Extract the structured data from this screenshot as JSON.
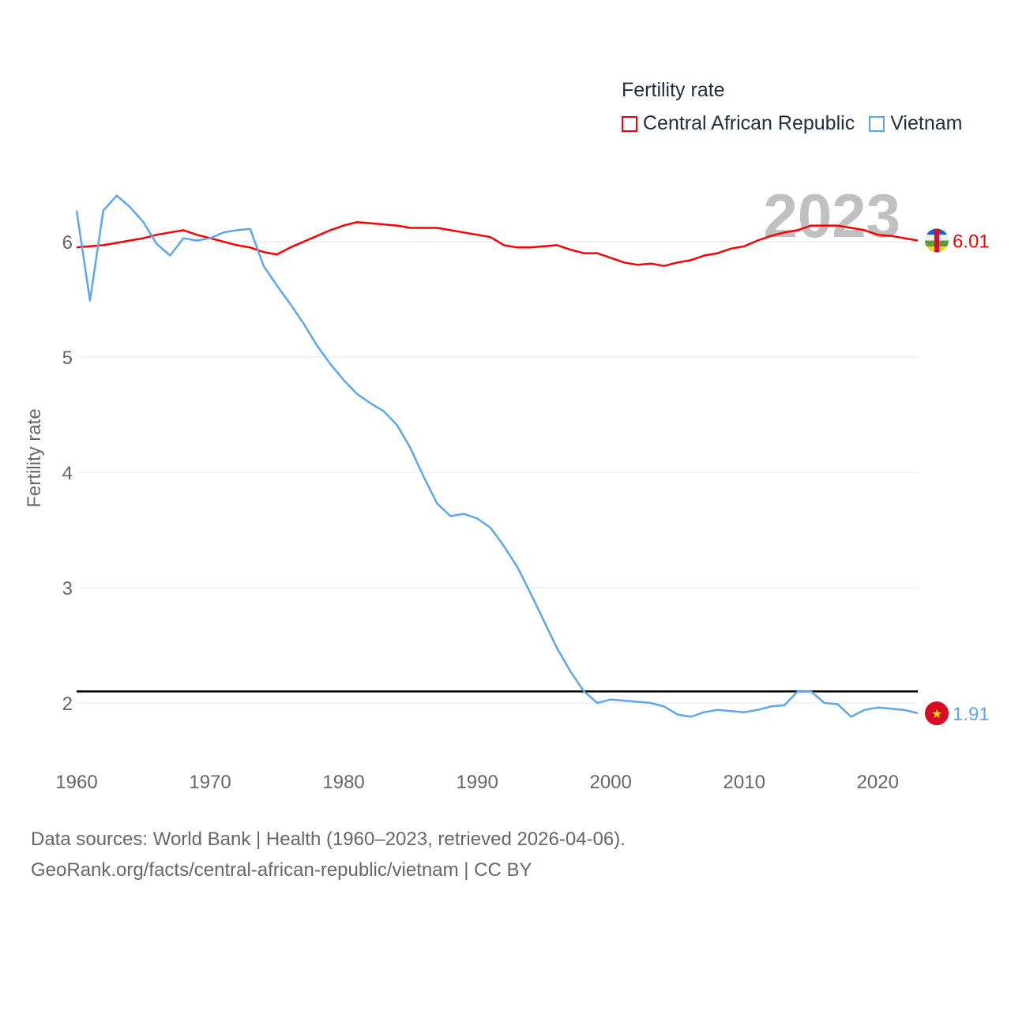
{
  "chart_data": {
    "type": "line",
    "title": "Fertility rate",
    "ylabel": "Fertility rate",
    "xlabel": "",
    "xlim": [
      1960,
      2023
    ],
    "ylim": [
      1.5,
      6.5
    ],
    "xticks": [
      1960,
      1970,
      1980,
      1990,
      2000,
      2010,
      2020
    ],
    "yticks": [
      2,
      3,
      4,
      5,
      6
    ],
    "grid": true,
    "legend_placement": "top-right",
    "year_watermark": "2023",
    "reference_line": {
      "y": 2.1,
      "color": "#000000"
    },
    "x": [
      1960,
      1961,
      1962,
      1963,
      1964,
      1965,
      1966,
      1967,
      1968,
      1969,
      1970,
      1971,
      1972,
      1973,
      1974,
      1975,
      1976,
      1977,
      1978,
      1979,
      1980,
      1981,
      1982,
      1983,
      1984,
      1985,
      1986,
      1987,
      1988,
      1989,
      1990,
      1991,
      1992,
      1993,
      1994,
      1995,
      1996,
      1997,
      1998,
      1999,
      2000,
      2001,
      2002,
      2003,
      2004,
      2005,
      2006,
      2007,
      2008,
      2009,
      2010,
      2011,
      2012,
      2013,
      2014,
      2015,
      2016,
      2017,
      2018,
      2019,
      2020,
      2021,
      2022,
      2023
    ],
    "series": [
      {
        "name": "Central African Republic",
        "color": "#ff0000",
        "end_label": "6.01",
        "values": [
          5.95,
          5.96,
          5.97,
          5.99,
          6.01,
          6.03,
          6.06,
          6.08,
          6.1,
          6.06,
          6.03,
          6.0,
          5.97,
          5.95,
          5.91,
          5.89,
          5.95,
          6.0,
          6.05,
          6.1,
          6.14,
          6.17,
          6.16,
          6.15,
          6.14,
          6.12,
          6.12,
          6.12,
          6.1,
          6.08,
          6.06,
          6.04,
          5.97,
          5.95,
          5.95,
          5.96,
          5.97,
          5.93,
          5.9,
          5.9,
          5.86,
          5.82,
          5.8,
          5.81,
          5.79,
          5.82,
          5.84,
          5.88,
          5.9,
          5.94,
          5.96,
          6.01,
          6.05,
          6.08,
          6.1,
          6.14,
          6.14,
          6.14,
          6.12,
          6.1,
          6.06,
          6.05,
          6.03,
          6.01
        ]
      },
      {
        "name": "Vietnam",
        "color": "#5ba7ee",
        "end_label": "1.91",
        "values": [
          6.27,
          5.49,
          6.27,
          6.4,
          6.3,
          6.17,
          5.98,
          5.88,
          6.03,
          6.01,
          6.03,
          6.08,
          6.1,
          6.11,
          5.79,
          5.62,
          5.46,
          5.29,
          5.1,
          4.94,
          4.8,
          4.68,
          4.6,
          4.53,
          4.41,
          4.21,
          3.96,
          3.73,
          3.62,
          3.64,
          3.6,
          3.52,
          3.36,
          3.18,
          2.95,
          2.71,
          2.47,
          2.27,
          2.1,
          2.0,
          2.03,
          2.02,
          2.01,
          2.0,
          1.97,
          1.9,
          1.88,
          1.92,
          1.94,
          1.93,
          1.92,
          1.94,
          1.97,
          1.98,
          2.1,
          2.1,
          2.0,
          1.99,
          1.88,
          1.94,
          1.96,
          1.95,
          1.94,
          1.91
        ]
      }
    ]
  },
  "footer": {
    "line1": "Data sources: World Bank | Health (1960–2023, retrieved 2026-04-06).",
    "line2": "GeoRank.org/facts/central-african-republic/vietnam | CC BY"
  }
}
